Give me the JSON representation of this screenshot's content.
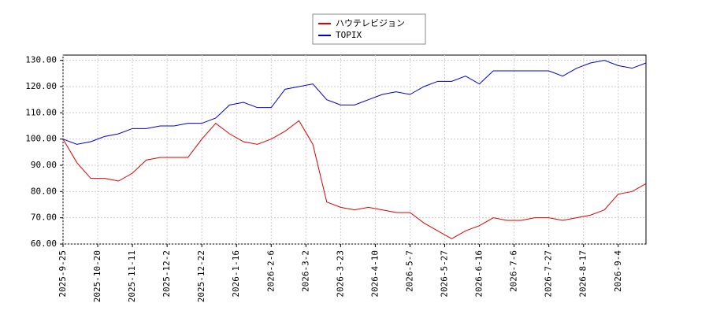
{
  "chart_data": {
    "type": "line",
    "x": [
      0,
      6,
      12,
      18,
      24,
      30,
      36,
      42,
      48,
      54,
      60,
      66,
      72,
      78,
      84,
      90,
      96,
      102,
      108,
      114,
      120,
      126,
      132,
      138,
      144,
      150,
      156,
      162,
      168,
      174,
      180,
      186,
      192,
      198,
      204,
      210,
      216,
      222,
      228,
      234,
      240,
      246,
      252
    ],
    "series": [
      {
        "name": "ハウテレビジョン",
        "color": "#dd0000",
        "values": [
          100,
          91,
          85,
          85,
          84,
          87,
          92,
          93,
          93,
          93,
          100,
          106,
          102,
          99,
          98,
          100,
          103,
          107,
          98,
          76,
          74,
          73,
          74,
          73,
          72,
          72,
          68,
          65,
          62,
          65,
          67,
          70,
          69,
          69,
          70,
          70,
          69,
          70,
          71,
          73,
          79,
          80,
          83
        ]
      },
      {
        "name": "TOPIX",
        "color": "#0000cc",
        "values": [
          100,
          98,
          99,
          101,
          102,
          104,
          104,
          105,
          105,
          106,
          106,
          108,
          113,
          114,
          112,
          112,
          119,
          120,
          121,
          115,
          113,
          113,
          115,
          117,
          118,
          117,
          120,
          122,
          122,
          124,
          121,
          126,
          126,
          126,
          126,
          126,
          124,
          127,
          129,
          130,
          128,
          127,
          129
        ]
      }
    ],
    "xlim": [
      0,
      252
    ],
    "xticks": [
      {
        "value": 0,
        "label": "2025-9-25"
      },
      {
        "value": 15,
        "label": "2025-10-20"
      },
      {
        "value": 30,
        "label": "2025-11-11"
      },
      {
        "value": 45,
        "label": "2025-12-2"
      },
      {
        "value": 60,
        "label": "2025-12-22"
      },
      {
        "value": 75,
        "label": "2026-1-16"
      },
      {
        "value": 90,
        "label": "2026-2-6"
      },
      {
        "value": 105,
        "label": "2026-3-2"
      },
      {
        "value": 120,
        "label": "2026-3-23"
      },
      {
        "value": 135,
        "label": "2026-4-10"
      },
      {
        "value": 150,
        "label": "2026-5-7"
      },
      {
        "value": 165,
        "label": "2026-5-27"
      },
      {
        "value": 180,
        "label": "2026-6-16"
      },
      {
        "value": 195,
        "label": "2026-7-6"
      },
      {
        "value": 210,
        "label": "2026-7-27"
      },
      {
        "value": 225,
        "label": "2026-8-17"
      },
      {
        "value": 240,
        "label": "2026-9-4"
      }
    ],
    "ylim": [
      60,
      132
    ],
    "yticks": [
      {
        "value": 60,
        "label": "60.00"
      },
      {
        "value": 70,
        "label": "70.00"
      },
      {
        "value": 80,
        "label": "80.00"
      },
      {
        "value": 90,
        "label": "90.00"
      },
      {
        "value": 100,
        "label": "100.00"
      },
      {
        "value": 110,
        "label": "110.00"
      },
      {
        "value": 120,
        "label": "120.00"
      },
      {
        "value": 130,
        "label": "130.00"
      }
    ],
    "grid": true
  }
}
